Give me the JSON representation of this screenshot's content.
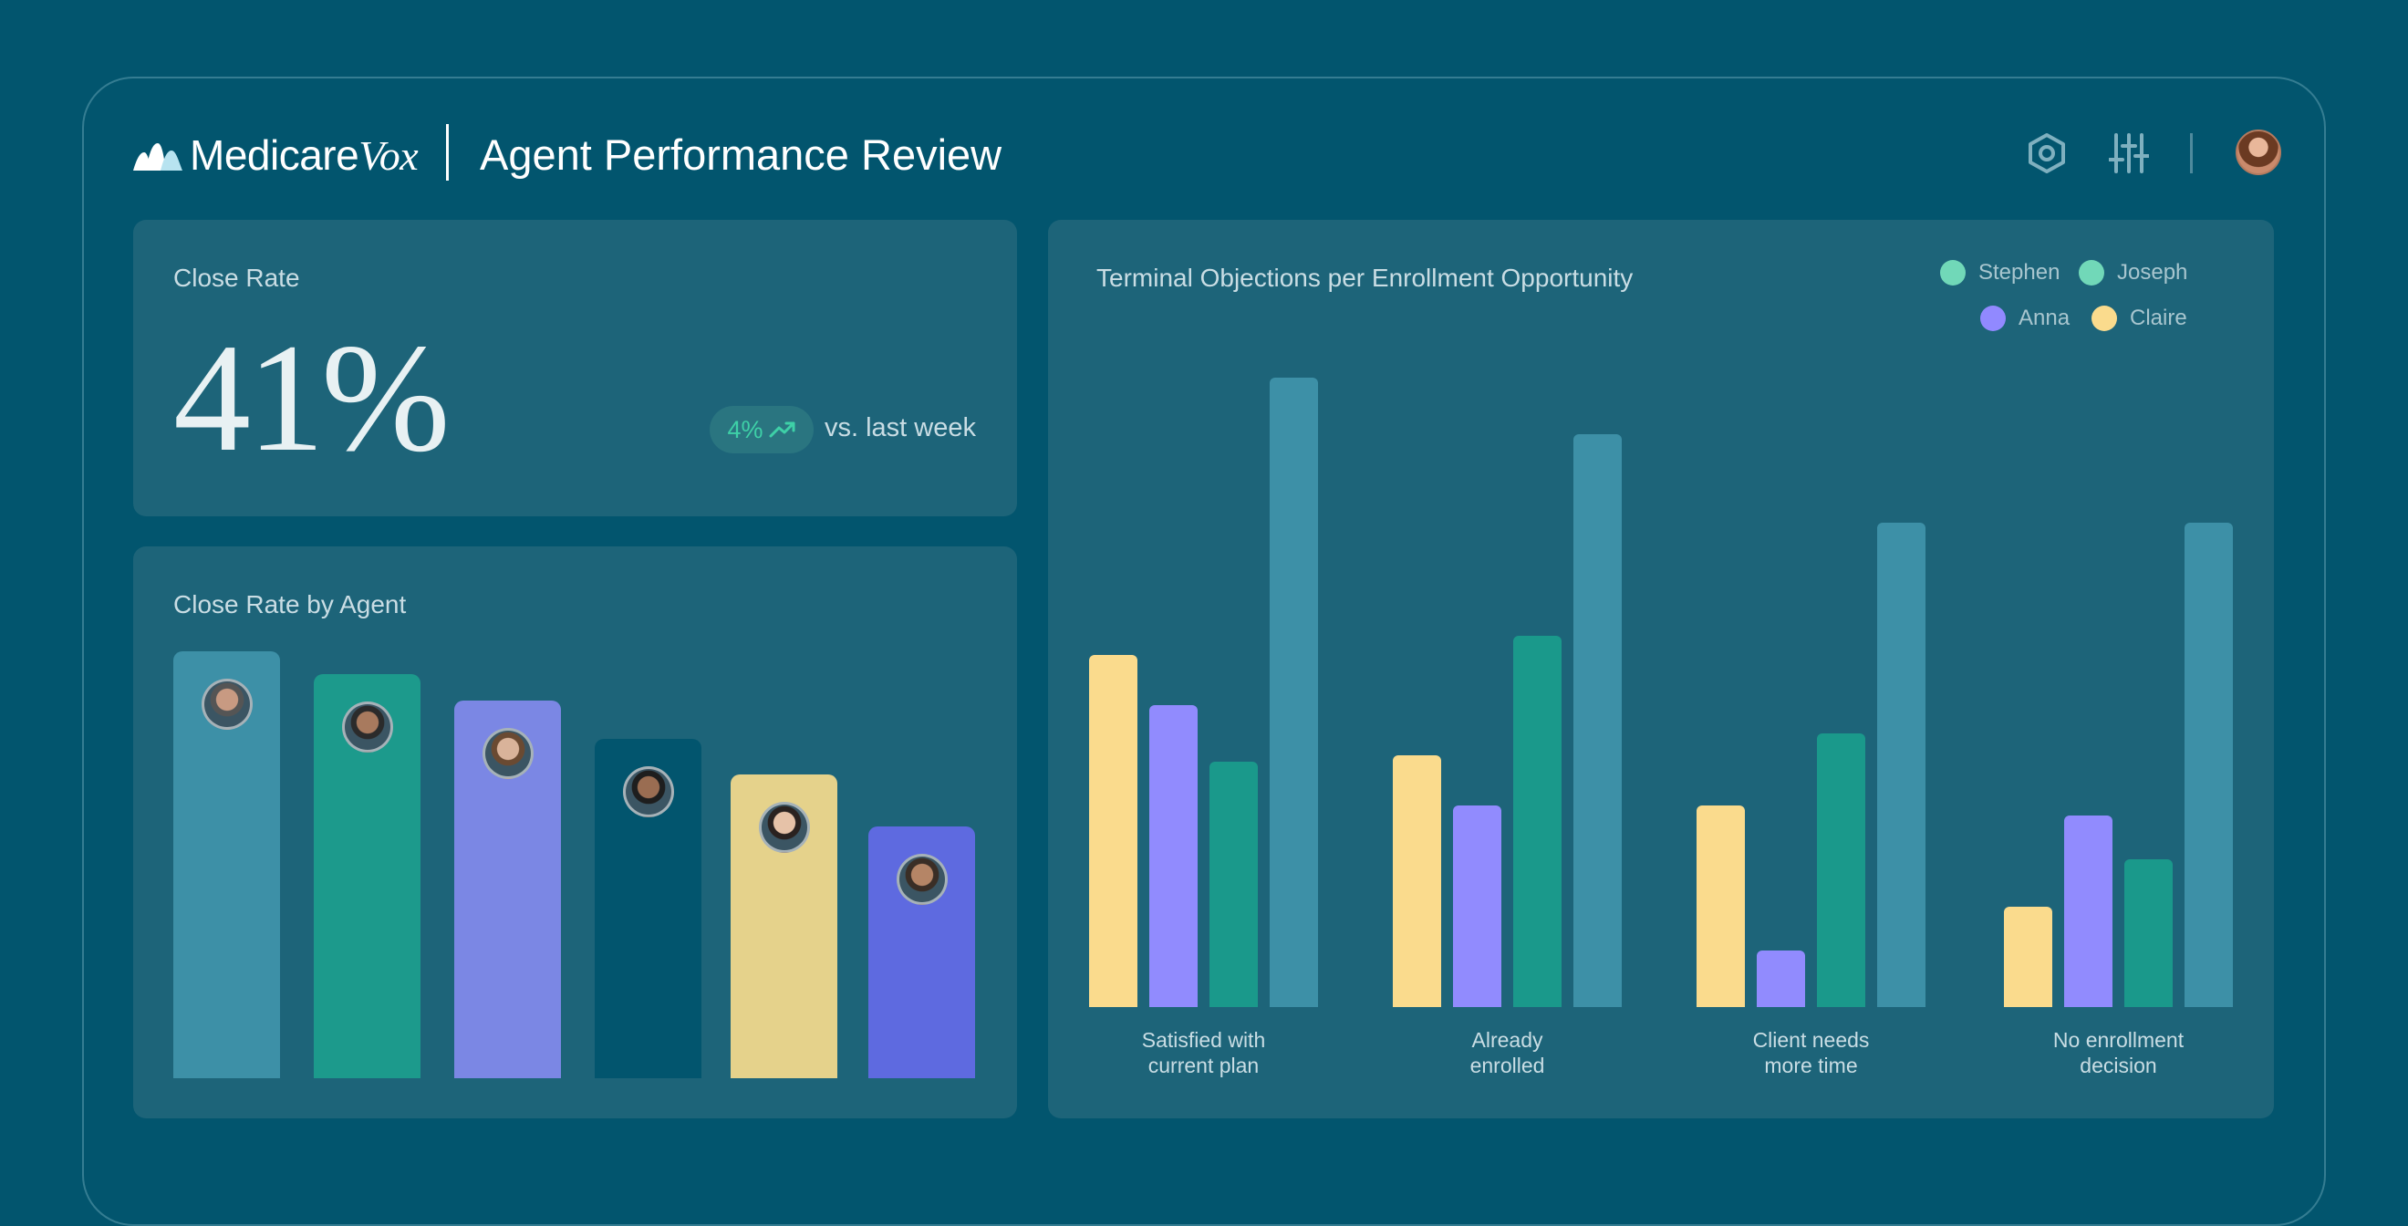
{
  "header": {
    "brand_prefix": "Medicare",
    "brand_suffix": "Vox",
    "title": "Agent Performance Review",
    "icons": [
      "settings-hex-icon",
      "sliders-icon"
    ]
  },
  "close_rate": {
    "title": "Close Rate",
    "value": "41%",
    "trend_value": "4%",
    "trend_label": "vs. last week"
  },
  "agent_chart": {
    "title": "Close Rate by Agent",
    "agents": [
      {
        "color": "#3d90a7",
        "value": 1.0
      },
      {
        "color": "#1c9a8c",
        "value": 0.947
      },
      {
        "color": "#7b87e4",
        "value": 0.885
      },
      {
        "color": "#02556e",
        "value": 0.795
      },
      {
        "color": "#e5d28b",
        "value": 0.712
      },
      {
        "color": "#5e6ae0",
        "value": 0.59
      }
    ]
  },
  "chart_data": {
    "type": "bar",
    "title": "Terminal Objections per Enrollment Opportunity",
    "categories": [
      "Satisfied with\ncurrent plan",
      "Already\nenrolled",
      "Client needs\nmore time",
      "No enrollment\ndecision"
    ],
    "series": [
      {
        "name": "Claire",
        "color": "#fadb8d",
        "values": [
          0.56,
          0.4,
          0.32,
          0.16
        ]
      },
      {
        "name": "Anna",
        "color": "#918bfe",
        "values": [
          0.48,
          0.32,
          0.09,
          0.305
        ]
      },
      {
        "name": "Joseph",
        "color": "#1a998b",
        "values": [
          0.39,
          0.59,
          0.435,
          0.235
        ]
      },
      {
        "name": "Stephen",
        "color": "#3d90a7",
        "values": [
          1.0,
          0.91,
          0.77,
          0.77
        ]
      }
    ],
    "legend": [
      {
        "name": "Stephen",
        "color": "#71d8b8"
      },
      {
        "name": "Joseph",
        "color": "#71d8b8"
      },
      {
        "name": "Anna",
        "color": "#9189ff"
      },
      {
        "name": "Claire",
        "color": "#fadb8d"
      }
    ],
    "ylim": [
      0,
      1
    ],
    "grid": false,
    "legend_position": "top-right"
  }
}
